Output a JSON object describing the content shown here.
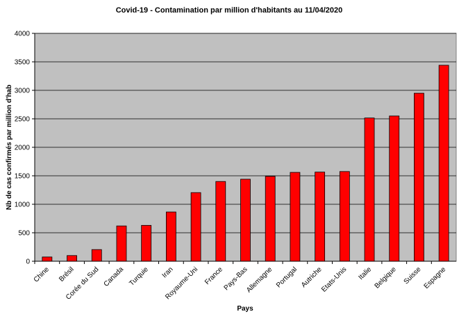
{
  "chart_data": {
    "type": "bar",
    "title": "Covid-19 - Contamination par million d'habitants au 11/04/2020",
    "x_label": "Pays",
    "y_label": "Nb de cas confirmés par million d'hab",
    "categories": [
      "Chine",
      "Brésil",
      "Corée du Sud",
      "Canada",
      "Turquie",
      "Iran",
      "Royaume-Uni",
      "France",
      "Pays-Bas",
      "Allemagne",
      "Portugal",
      "Autriche",
      "Etats-Unis",
      "Italie",
      "Belgique",
      "Suisse",
      "Espagne"
    ],
    "values": [
      75,
      100,
      205,
      620,
      630,
      865,
      1205,
      1400,
      1440,
      1490,
      1560,
      1565,
      1575,
      2515,
      2550,
      2950,
      3440
    ],
    "color": "#ff0000",
    "ylim": [
      0,
      4000
    ],
    "yticks": [
      0,
      500,
      1000,
      1500,
      2000,
      2500,
      3000,
      3500,
      4000
    ],
    "grid": true
  }
}
